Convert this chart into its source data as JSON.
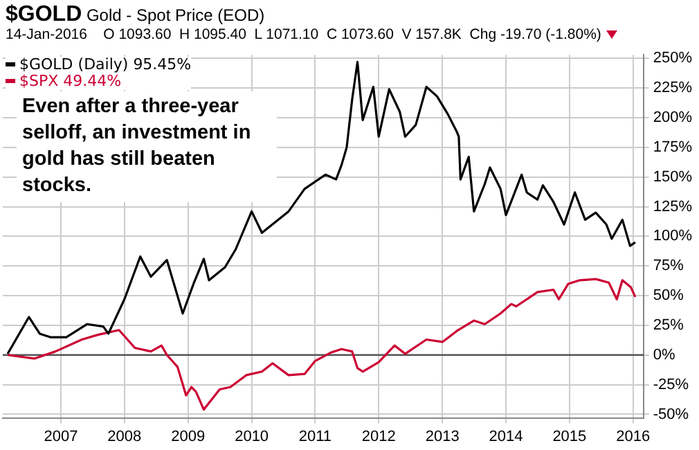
{
  "chart_data": {
    "type": "line",
    "title": "$GOLD Gold - Spot Price (EOD)",
    "subtitle": "14-Jan-2016    O 1093.60  H 1095.40  L 1071.10  C 1073.60  V 157.8K  Chg -19.70 (-1.80%)",
    "annotations": [
      "Even after a three-year selloff, an investment in gold has still beaten stocks."
    ],
    "series": [
      {
        "name": "$GOLD (Daily) 95.45%",
        "color": "#000000",
        "x": [
          "2006-03",
          "2006-07",
          "2006-09",
          "2006-11",
          "2007-02",
          "2007-06",
          "2007-09",
          "2007-10",
          "2008-01",
          "2008-04",
          "2008-06",
          "2008-09",
          "2008-12",
          "2009-02",
          "2009-04",
          "2009-05",
          "2009-08",
          "2009-10",
          "2010-01",
          "2010-03",
          "2010-08",
          "2010-11",
          "2011-03",
          "2011-05",
          "2011-06",
          "2011-07",
          "2011-08",
          "2011-09",
          "2011-10",
          "2011-12",
          "2012-01",
          "2012-03",
          "2012-05",
          "2012-06",
          "2012-08",
          "2012-10",
          "2012-12",
          "2013-02",
          "2013-03-25",
          "2013-04-05",
          "2013-04-15",
          "2013-06",
          "2013-07",
          "2013-09",
          "2013-10",
          "2013-12",
          "2014-01",
          "2014-04",
          "2014-05",
          "2014-07",
          "2014-08",
          "2014-10",
          "2014-12",
          "2015-02",
          "2015-04",
          "2015-06",
          "2015-08",
          "2015-09",
          "2015-11",
          "2015-12-15",
          "2016-01-14"
        ],
        "values": [
          1,
          32,
          18,
          15,
          15,
          26,
          24,
          18,
          47,
          83,
          66,
          80,
          35,
          60,
          81,
          63,
          74,
          89,
          121,
          103,
          121,
          140,
          152,
          148,
          160,
          175,
          215,
          247,
          198,
          226,
          184,
          224,
          205,
          184,
          194,
          226,
          218,
          203,
          188,
          184,
          148,
          167,
          121,
          144,
          158,
          140,
          118,
          152,
          137,
          131,
          143,
          129,
          110,
          137,
          114,
          120,
          110,
          98,
          114,
          92,
          95
        ]
      },
      {
        "name": "$SPX 49.44%",
        "color": "#cc0033",
        "x": [
          "2006-03",
          "2006-08",
          "2006-12",
          "2007-05",
          "2007-08",
          "2007-12",
          "2008-03",
          "2008-06",
          "2008-08",
          "2008-09",
          "2008-11",
          "2008-12-20",
          "2009-01-20",
          "2009-02-15",
          "2009-04",
          "2009-07",
          "2009-09",
          "2009-12",
          "2010-03",
          "2010-05",
          "2010-08",
          "2010-11",
          "2011-01",
          "2011-04",
          "2011-06",
          "2011-08",
          "2011-09",
          "2011-10",
          "2012-01",
          "2012-04",
          "2012-06",
          "2012-10",
          "2013-01",
          "2013-04",
          "2013-07",
          "2013-09",
          "2013-12",
          "2014-02",
          "2014-03",
          "2014-07",
          "2014-10",
          "2014-11",
          "2014-12-25",
          "2015-03",
          "2015-06",
          "2015-08-15",
          "2015-09-30",
          "2015-11",
          "2015-12-20",
          "2016-01-14"
        ],
        "values": [
          0,
          -3,
          3,
          13,
          17,
          21,
          6,
          3,
          8,
          0,
          -10,
          -34,
          -27,
          -31,
          -46,
          -29,
          -27,
          -17,
          -14,
          -7,
          -17,
          -16,
          -5,
          2,
          5,
          3,
          -11,
          -14,
          -6,
          8,
          1,
          13,
          11,
          21,
          29,
          26,
          35,
          43,
          41,
          53,
          55,
          47,
          60,
          63,
          64,
          61,
          47,
          63,
          57,
          49
        ]
      }
    ],
    "xlim": [
      "2006-02",
      "2016-03"
    ],
    "xticks": [
      {
        "value": "2007",
        "label": "2007"
      },
      {
        "value": "2008",
        "label": "2008"
      },
      {
        "value": "2009",
        "label": "2009"
      },
      {
        "value": "2010",
        "label": "2010"
      },
      {
        "value": "2011",
        "label": "2011"
      },
      {
        "value": "2012",
        "label": "2012"
      },
      {
        "value": "2013",
        "label": "2013"
      },
      {
        "value": "2014",
        "label": "2014"
      },
      {
        "value": "2015",
        "label": "2015"
      },
      {
        "value": "2016",
        "label": "2016"
      }
    ],
    "ylim": [
      -53,
      253
    ],
    "yticks": [
      {
        "value": -50,
        "label": "-50%"
      },
      {
        "value": -25,
        "label": "-25%"
      },
      {
        "value": 0,
        "label": "0%"
      },
      {
        "value": 25,
        "label": "25%"
      },
      {
        "value": 50,
        "label": "50%"
      },
      {
        "value": 75,
        "label": "75%"
      },
      {
        "value": 100,
        "label": "100%"
      },
      {
        "value": 125,
        "label": "125%"
      },
      {
        "value": 150,
        "label": "150%"
      },
      {
        "value": 175,
        "label": "175%"
      },
      {
        "value": 200,
        "label": "200%"
      },
      {
        "value": 225,
        "label": "225%"
      },
      {
        "value": 250,
        "label": "250%"
      }
    ],
    "ref_lines": [
      {
        "axis": "y",
        "value": 0,
        "color": "#555555"
      }
    ],
    "grid": true,
    "legend": "top left",
    "marker": "none",
    "line_style": "solid"
  }
}
